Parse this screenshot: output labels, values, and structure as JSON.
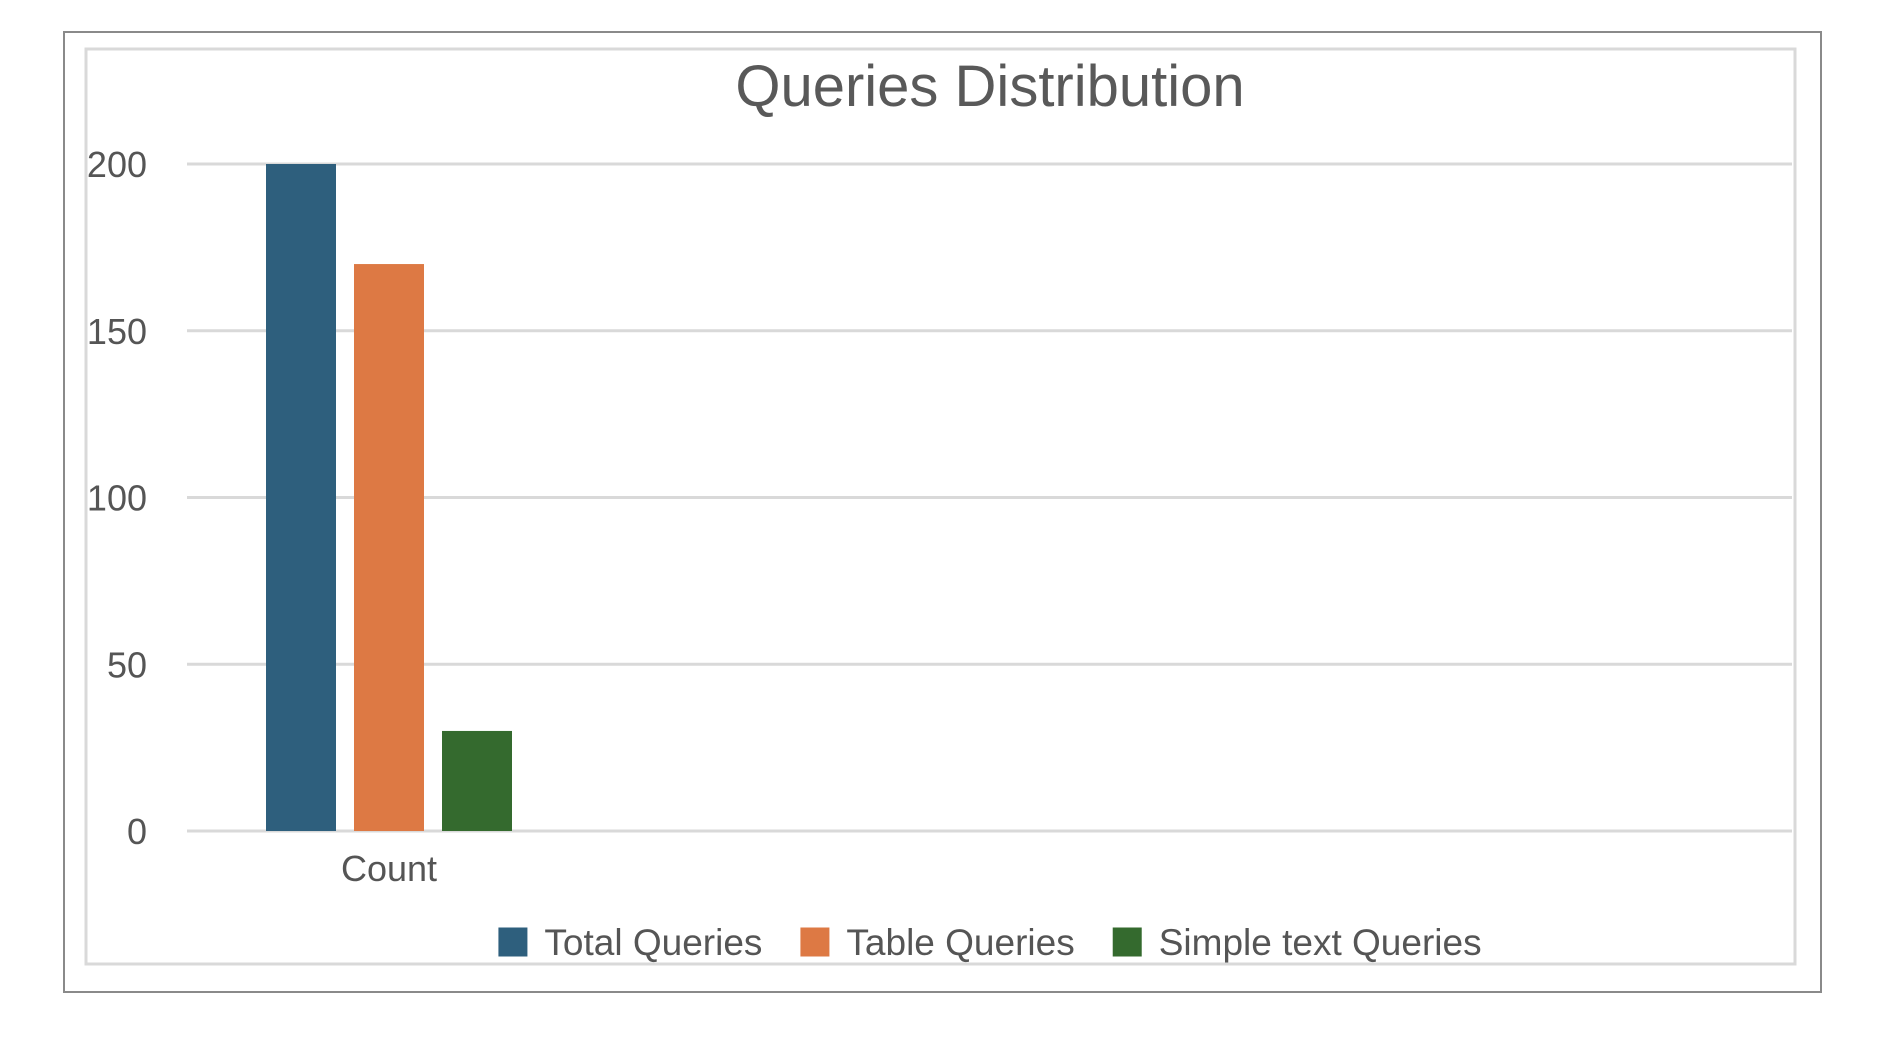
{
  "chart_data": {
    "type": "bar",
    "title": "Queries Distribution",
    "categories": [
      "Count"
    ],
    "series": [
      {
        "name": "Total Queries",
        "values": [
          200
        ],
        "color": "#2e5f7d"
      },
      {
        "name": "Table Queries",
        "values": [
          170
        ],
        "color": "#dd7944"
      },
      {
        "name": "Simple text Queries",
        "values": [
          30
        ],
        "color": "#346a2e"
      }
    ],
    "xlabel": "",
    "ylabel": "",
    "ylim": [
      0,
      200
    ],
    "yticks": [
      "0",
      "50",
      "100",
      "150",
      "200"
    ],
    "grid": true,
    "legend_position": "bottom"
  }
}
